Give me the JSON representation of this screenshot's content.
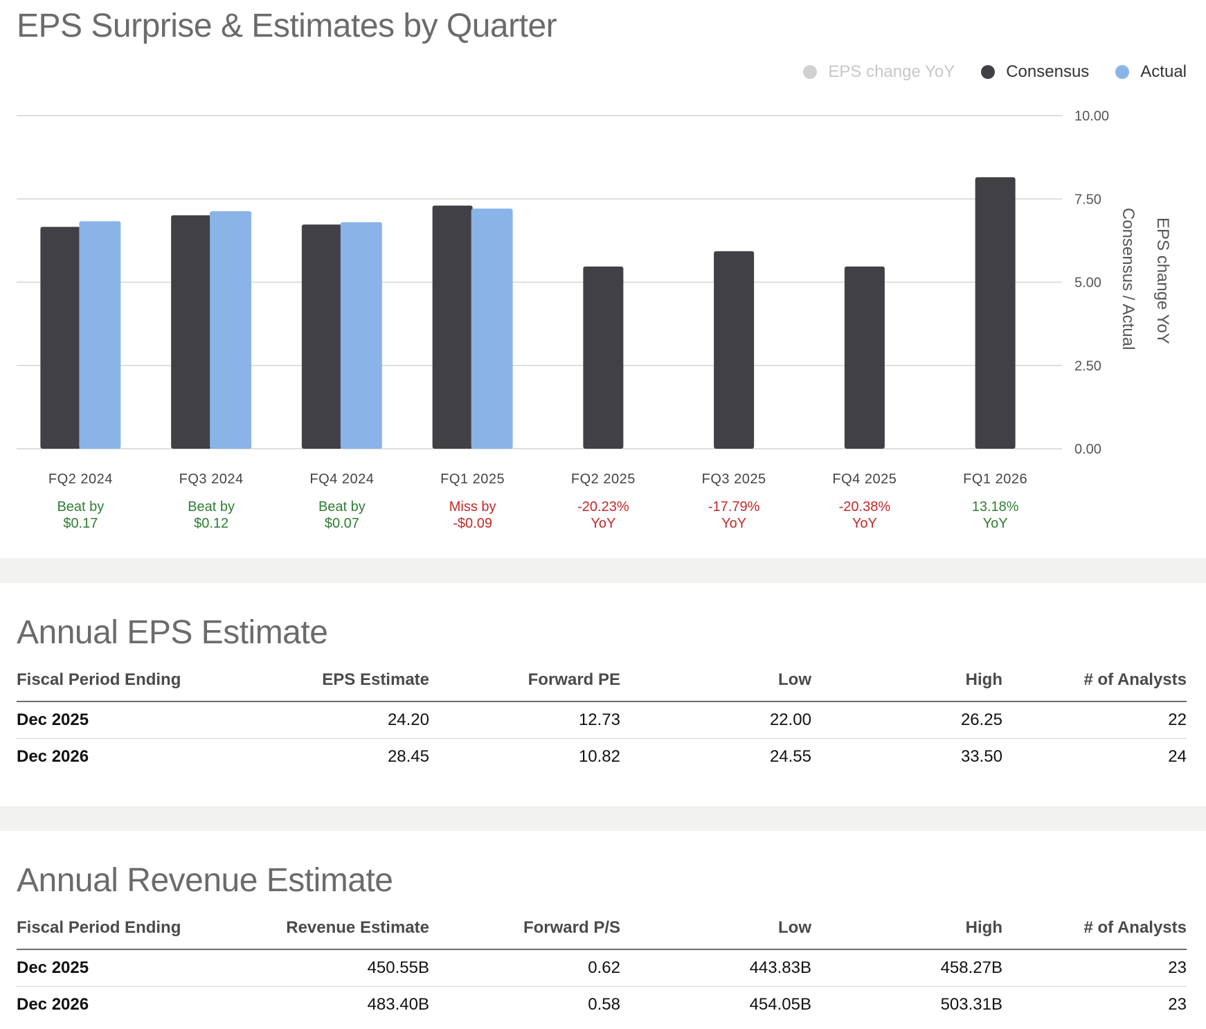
{
  "eps_chart": {
    "title": "EPS Surprise & Estimates by Quarter",
    "legend": [
      {
        "label": "EPS change YoY",
        "color": "#d0d0d0",
        "muted": true
      },
      {
        "label": "Consensus",
        "color": "#404045",
        "muted": false
      },
      {
        "label": "Actual",
        "color": "#8ab4e8",
        "muted": false
      }
    ]
  },
  "chart_data": {
    "type": "bar",
    "title": "EPS Surprise & Estimates by Quarter",
    "categories": [
      "FQ2 2024",
      "FQ3 2024",
      "FQ4 2024",
      "FQ1 2025",
      "FQ2 2025",
      "FQ3 2025",
      "FQ4 2025",
      "FQ1 2026"
    ],
    "series": [
      {
        "name": "Consensus",
        "color": "#404045",
        "values": [
          6.66,
          7.01,
          6.73,
          7.3,
          5.47,
          5.93,
          5.47,
          8.15
        ]
      },
      {
        "name": "Actual",
        "color": "#8ab4e8",
        "values": [
          6.83,
          7.13,
          6.8,
          7.21,
          null,
          null,
          null,
          null
        ]
      }
    ],
    "ylabel": "Consensus / Actual",
    "y2label": "EPS change YoY",
    "ylim": [
      0,
      10
    ],
    "yticks": [
      "0.00",
      "2.50",
      "5.00",
      "7.50",
      "10.00"
    ],
    "ytick_values": [
      0,
      2.5,
      5,
      7.5,
      10
    ],
    "annotations": [
      {
        "line1": "Beat by",
        "line2": "$0.17",
        "status": "positive"
      },
      {
        "line1": "Beat by",
        "line2": "$0.12",
        "status": "positive"
      },
      {
        "line1": "Beat by",
        "line2": "$0.07",
        "status": "positive"
      },
      {
        "line1": "Miss by",
        "line2": "-$0.09",
        "status": "negative"
      },
      {
        "line1": "-20.23%",
        "line2": "YoY",
        "status": "negative"
      },
      {
        "line1": "-17.79%",
        "line2": "YoY",
        "status": "negative"
      },
      {
        "line1": "-20.38%",
        "line2": "YoY",
        "status": "negative"
      },
      {
        "line1": "13.18%",
        "line2": "YoY",
        "status": "positive"
      }
    ],
    "grid": true,
    "legend_position": "top-right",
    "colors": {
      "positive": "#2e7d32",
      "negative": "#c62828"
    }
  },
  "annual_eps": {
    "title": "Annual EPS Estimate",
    "headers": [
      "Fiscal Period Ending",
      "EPS Estimate",
      "Forward PE",
      "Low",
      "High",
      "# of Analysts"
    ],
    "rows": [
      [
        "Dec 2025",
        "24.20",
        "12.73",
        "22.00",
        "26.25",
        "22"
      ],
      [
        "Dec 2026",
        "28.45",
        "10.82",
        "24.55",
        "33.50",
        "24"
      ]
    ]
  },
  "annual_revenue": {
    "title": "Annual Revenue Estimate",
    "headers": [
      "Fiscal Period Ending",
      "Revenue Estimate",
      "Forward P/S",
      "Low",
      "High",
      "# of Analysts"
    ],
    "rows": [
      [
        "Dec 2025",
        "450.55B",
        "0.62",
        "443.83B",
        "458.27B",
        "23"
      ],
      [
        "Dec 2026",
        "483.40B",
        "0.58",
        "454.05B",
        "503.31B",
        "23"
      ]
    ]
  }
}
